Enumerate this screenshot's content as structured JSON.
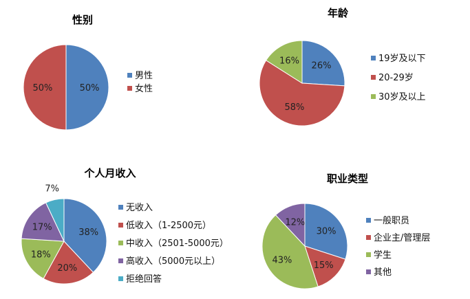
{
  "chart_data": [
    {
      "type": "pie",
      "title": "性别",
      "categories": [
        "男性",
        "女性"
      ],
      "values": [
        50,
        50
      ],
      "labels": [
        "50%",
        "50%"
      ],
      "colors": [
        "#4F81BD",
        "#C0504D"
      ],
      "legend": "right"
    },
    {
      "type": "pie",
      "title": "年龄",
      "categories": [
        "19岁及以下",
        "20-29岁",
        "30岁及以上"
      ],
      "values": [
        26,
        58,
        16
      ],
      "labels": [
        "26%",
        "58%",
        "16%"
      ],
      "colors": [
        "#4F81BD",
        "#C0504D",
        "#9BBB59"
      ],
      "legend": "right"
    },
    {
      "type": "pie",
      "title": "个人月收入",
      "categories": [
        "无收入",
        "低收入（1-2500元）",
        "中收入（2501-5000元）",
        "高收入（5000元以上）",
        "拒绝回答"
      ],
      "values": [
        38,
        20,
        18,
        17,
        7
      ],
      "labels": [
        "38%",
        "20%",
        "18%",
        "17%",
        "7%"
      ],
      "colors": [
        "#4F81BD",
        "#C0504D",
        "#9BBB59",
        "#8064A2",
        "#4BACC6"
      ],
      "legend": "right"
    },
    {
      "type": "pie",
      "title": "职业类型",
      "categories": [
        "一般职员",
        "企业主/管理层",
        "学生",
        "其他"
      ],
      "values": [
        30,
        15,
        43,
        12
      ],
      "labels": [
        "30%",
        "15%",
        "43%",
        "12%"
      ],
      "colors": [
        "#4F81BD",
        "#C0504D",
        "#9BBB59",
        "#8064A2"
      ],
      "legend": "right"
    }
  ]
}
